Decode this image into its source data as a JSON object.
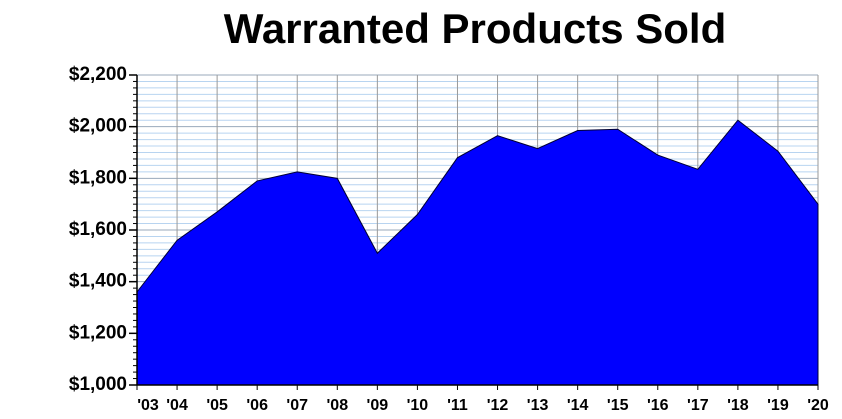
{
  "chart_data": {
    "type": "area",
    "title": "Warranted Products Sold",
    "categories": [
      "'03",
      "'04",
      "'05",
      "'06",
      "'07",
      "'08",
      "'09",
      "'10",
      "'11",
      "'12",
      "'13",
      "'14",
      "'15",
      "'16",
      "'17",
      "'18",
      "'19",
      "'20"
    ],
    "values": [
      1360,
      1560,
      1670,
      1790,
      1825,
      1800,
      1510,
      1660,
      1880,
      1965,
      1915,
      1985,
      1990,
      1890,
      1835,
      2025,
      1905,
      1700
    ],
    "color": "#0000ff",
    "ylim": [
      1000,
      2200
    ],
    "yticks": [
      {
        "value": 1000,
        "label": "$1,000"
      },
      {
        "value": 1200,
        "label": "$1,200"
      },
      {
        "value": 1400,
        "label": "$1,400"
      },
      {
        "value": 1600,
        "label": "$1,600"
      },
      {
        "value": 1800,
        "label": "$1,800"
      },
      {
        "value": 2000,
        "label": "$2,000"
      },
      {
        "value": 2200,
        "label": "$2,200"
      }
    ],
    "minor_yticks": [
      1025,
      1050,
      1075,
      1100,
      1125,
      1150,
      1175,
      1225,
      1250,
      1275,
      1300,
      1325,
      1350,
      1375,
      1425,
      1450,
      1475,
      1500,
      1525,
      1550,
      1575,
      1625,
      1650,
      1675,
      1700,
      1725,
      1750,
      1775,
      1825,
      1850,
      1875,
      1900,
      1925,
      1950,
      1975,
      2025,
      2050,
      2075,
      2100,
      2125,
      2150,
      2175
    ],
    "grid": true
  }
}
